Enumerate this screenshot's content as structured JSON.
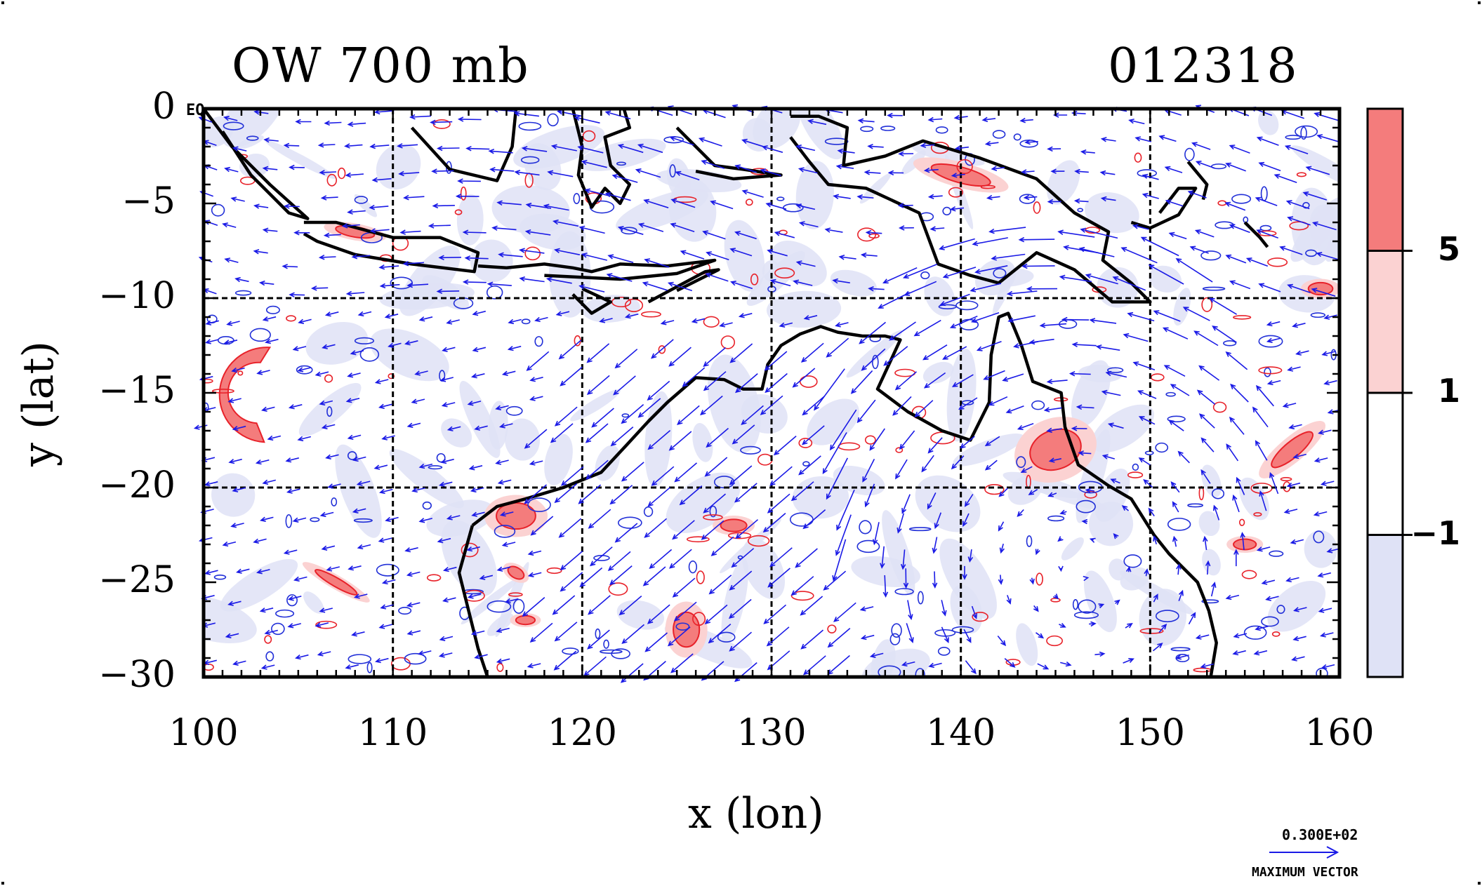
{
  "map": {
    "title": "OW 700 mb",
    "date_code": "012318",
    "xlabel": "x (lon)",
    "ylabel": "y (lat)",
    "eq_label": "EQ",
    "extent": {
      "lon": [
        100,
        160
      ],
      "lat": [
        -30,
        0
      ]
    },
    "x_ticks": [
      {
        "value": 100,
        "label": "100"
      },
      {
        "value": 110,
        "label": "110"
      },
      {
        "value": 120,
        "label": "120"
      },
      {
        "value": 130,
        "label": "130"
      },
      {
        "value": 140,
        "label": "140"
      },
      {
        "value": 150,
        "label": "150"
      },
      {
        "value": 160,
        "label": "160"
      }
    ],
    "y_ticks": [
      {
        "value": 0,
        "label": "0"
      },
      {
        "value": -5,
        "label": "−5"
      },
      {
        "value": -10,
        "label": "−10"
      },
      {
        "value": -15,
        "label": "−15"
      },
      {
        "value": -20,
        "label": "−20"
      },
      {
        "value": -25,
        "label": "−25"
      },
      {
        "value": -30,
        "label": "−30"
      }
    ],
    "grid": "dashed every 10 degrees",
    "colors": {
      "strong_positive": "#f47c7c",
      "weak_positive": "#fbd2d2",
      "negative": "#dfe2f6",
      "contour_pos": "#e8222a",
      "contour_neg": "#2230d8",
      "vectors": "#1a1ae6",
      "coast": "#000000"
    }
  },
  "colorbar": {
    "levels": [
      {
        "label": "5",
        "value": 5
      },
      {
        "label": "1",
        "value": 1
      },
      {
        "label": "−1",
        "value": -1
      }
    ],
    "bands": [
      {
        "range": "> 5",
        "color": "#f47c7c"
      },
      {
        "range": "1 to 5",
        "color": "#fbd2d2"
      },
      {
        "range": "-1 to 1",
        "color": "#ffffff"
      },
      {
        "range": "< -1",
        "color": "#dfe2f6"
      }
    ]
  },
  "vector_legend": {
    "magnitude": "0.300E+02",
    "label": "MAXIMUM VECTOR"
  }
}
